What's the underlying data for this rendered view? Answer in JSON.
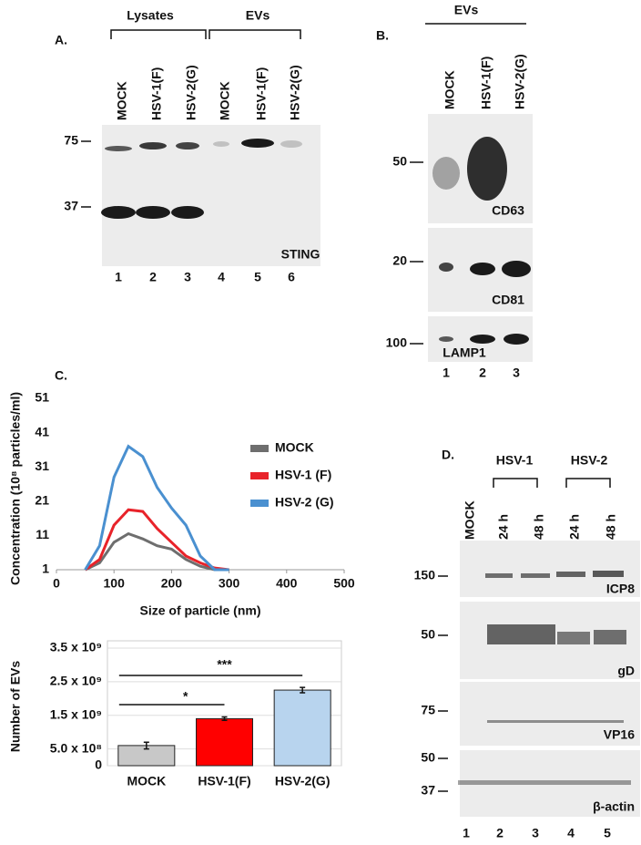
{
  "panel_a": {
    "label": "A.",
    "groups": [
      "Lysates",
      "EVs"
    ],
    "lanes": [
      "MOCK",
      "HSV-1(F)",
      "HSV-2(G)",
      "MOCK",
      "HSV-1(F)",
      "HSV-2(G)"
    ],
    "markers": [
      75,
      37
    ],
    "blot_label": "STING",
    "lane_numbers": [
      1,
      2,
      3,
      4,
      5,
      6
    ]
  },
  "panel_b": {
    "label": "B.",
    "group": "EVs",
    "lanes": [
      "MOCK",
      "HSV-1(F)",
      "HSV-2(G)"
    ],
    "blots": [
      {
        "marker": 50,
        "label": "CD63"
      },
      {
        "marker": 20,
        "label": "CD81"
      },
      {
        "marker": 100,
        "label": "LAMP1"
      }
    ],
    "lane_numbers": [
      1,
      2,
      3
    ]
  },
  "chart_data": [
    {
      "type": "line",
      "panel_label": "C.",
      "y_label": "Concentration (10⁸ particles/ml)",
      "x_label": "Size of particle (nm)",
      "x": [
        50,
        75,
        100,
        125,
        150,
        175,
        200,
        225,
        250,
        275,
        300
      ],
      "series": [
        {
          "name": "MOCK",
          "color": "#6e6e6e",
          "values": [
            1,
            3,
            9,
            11.5,
            10,
            8,
            7,
            4,
            2,
            1,
            1
          ]
        },
        {
          "name": "HSV-1 (F)",
          "color": "#e8232a",
          "values": [
            1,
            4,
            14,
            18.5,
            18,
            13,
            9,
            5,
            3,
            1.5,
            1
          ]
        },
        {
          "name": "HSV-2 (G)",
          "color": "#4a90d0",
          "values": [
            1,
            8,
            28,
            37,
            34,
            25,
            19,
            14,
            5,
            1,
            1
          ]
        }
      ],
      "xlim": [
        0,
        500
      ],
      "xticks": [
        0,
        100,
        200,
        300,
        400,
        500
      ],
      "ylim": [
        1,
        51
      ],
      "yticks": [
        1,
        11,
        21,
        31,
        41,
        51
      ],
      "legend": "right"
    },
    {
      "type": "bar",
      "y_label": "Number of EVs",
      "categories": [
        "MOCK",
        "HSV-1(F)",
        "HSV-2(G)"
      ],
      "values": [
        600000000,
        1400000000,
        2250000000
      ],
      "errors": [
        100000000,
        50000000,
        80000000
      ],
      "colors": [
        "#c8c8c8",
        "#ff0000",
        "#b8d4ee"
      ],
      "ylim": [
        0,
        3500000000
      ],
      "yticks": [
        0,
        {
          "value": 500000000,
          "label": "5.0 x 10⁸"
        },
        {
          "value": 1500000000,
          "label": "1.5 x 10⁹"
        },
        {
          "value": 2500000000,
          "label": "2.5 x 10⁹"
        },
        {
          "value": 3500000000,
          "label": "3.5 x 10⁹"
        }
      ],
      "grid": true,
      "annotations": [
        "*",
        "***"
      ]
    }
  ],
  "panel_d": {
    "label": "D.",
    "groups": [
      "HSV-1",
      "HSV-2"
    ],
    "lanes": [
      "MOCK",
      "24 h",
      "48 h",
      "24 h",
      "48 h"
    ],
    "blots": [
      {
        "markers": [
          150
        ],
        "label": "ICP8"
      },
      {
        "markers": [
          50
        ],
        "label": "gD"
      },
      {
        "markers": [
          75
        ],
        "label": "VP16"
      },
      {
        "markers": [
          50,
          37
        ],
        "label": "β-actin"
      }
    ],
    "lane_numbers": [
      1,
      2,
      3,
      4,
      5
    ]
  }
}
